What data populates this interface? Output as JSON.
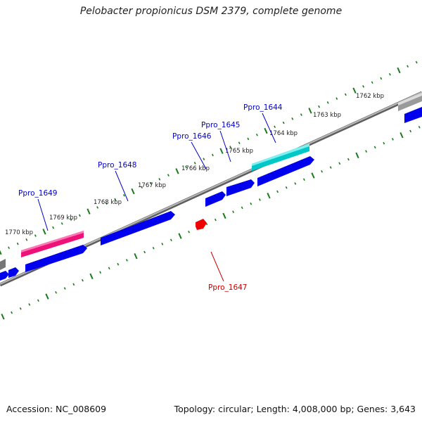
{
  "title": "Pelobacter propionicus DSM 2379, complete genome",
  "footer": {
    "accession": "Accession: NC_008609",
    "summary": "Topology: circular; Length: 4,008,000 bp; Genes: 3,643"
  },
  "colors": {
    "backbone": "#8c8c8c",
    "tick": "#1b7a1b",
    "gene_forward": "#0000ee",
    "gene_pseudo": "#ee1177",
    "gene_rna": "#00c8c8",
    "gene_other": "#999999",
    "gene_highlight": "#ee0000",
    "label_blue": "#0000cc",
    "label_red": "#cc0000"
  },
  "scale_labels": [
    "1770 kbp",
    "1769 kbp",
    "1768 kbp",
    "1767 kbp",
    "1766 kbp",
    "1765 kbp",
    "1764 kbp",
    "1763 kbp",
    "1762 kbp"
  ],
  "gene_labels": [
    {
      "name": "Ppro_1649",
      "color": "blue"
    },
    {
      "name": "Ppro_1648",
      "color": "blue"
    },
    {
      "name": "Ppro_1646",
      "color": "blue"
    },
    {
      "name": "Ppro_1645",
      "color": "blue"
    },
    {
      "name": "Ppro_1644",
      "color": "blue"
    },
    {
      "name": "Ppro_1647",
      "color": "red"
    }
  ]
}
